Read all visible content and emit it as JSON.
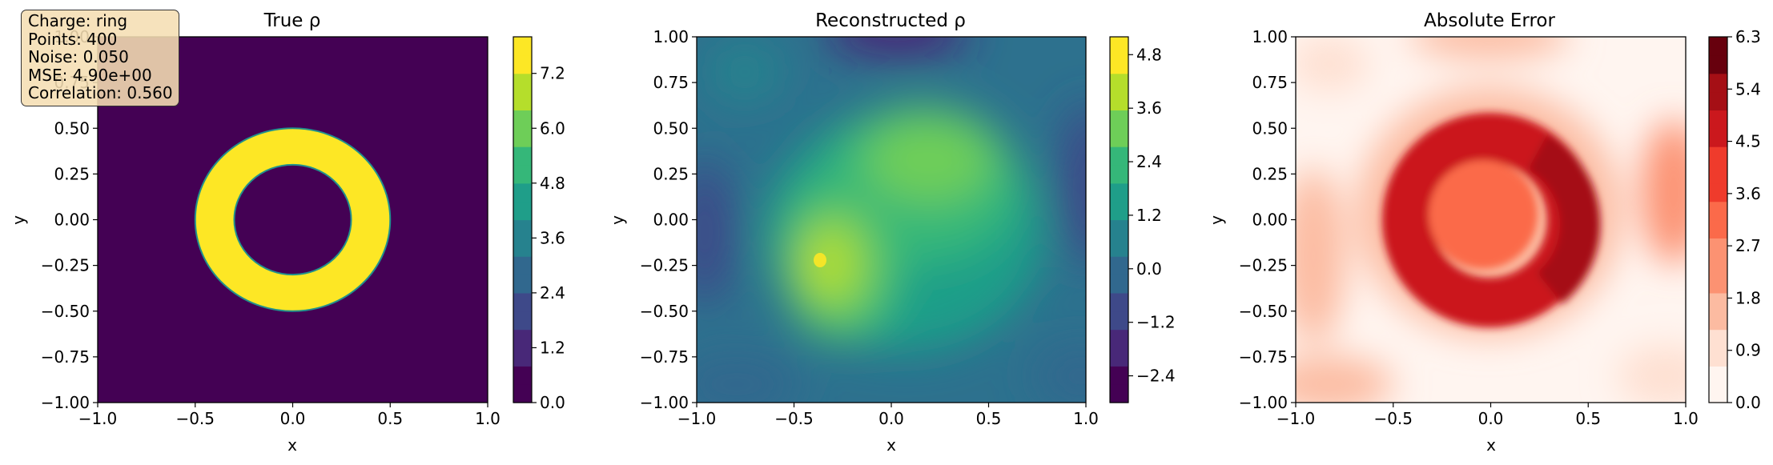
{
  "info_box": {
    "charge": "Charge: ring",
    "points": "Points: 400",
    "noise": "Noise: 0.050",
    "mse": "MSE: 4.90e+00",
    "correlation": "Correlation: 0.560"
  },
  "colors": {
    "viridis": [
      "#440154",
      "#482878",
      "#3e4989",
      "#31688e",
      "#26828e",
      "#1f9e89",
      "#35b779",
      "#6ece58",
      "#b5de2b",
      "#fde725"
    ],
    "reds": [
      "#fff5f0",
      "#fee0d2",
      "#fcbba1",
      "#fc9272",
      "#fb6a4a",
      "#ef3b2c",
      "#cb181d",
      "#a50f15",
      "#67000d"
    ]
  },
  "chart_data": [
    {
      "type": "heatmap",
      "title": "True ρ",
      "xlabel": "x",
      "ylabel": "y",
      "xlim": [
        -1.0,
        1.0
      ],
      "ylim": [
        -1.0,
        1.0
      ],
      "x_ticks": [
        "−1.0",
        "−0.5",
        "0.0",
        "0.5",
        "1.0"
      ],
      "y_ticks": [
        "−1.00",
        "−0.75",
        "−0.50",
        "−0.25",
        "0.00",
        "0.25",
        "0.50",
        "0.75",
        "1.00"
      ],
      "colormap": "viridis",
      "colorbar_range": [
        0.0,
        8.0
      ],
      "colorbar_ticks": [
        "0.0",
        "1.2",
        "2.4",
        "3.6",
        "4.8",
        "6.0",
        "7.2"
      ],
      "ring": {
        "center": [
          0.0,
          0.0
        ],
        "inner_radius": 0.3,
        "outer_radius": 0.5,
        "value": 8.0,
        "background": 0.0
      }
    },
    {
      "type": "heatmap",
      "title": "Reconstructed ρ",
      "xlabel": "x",
      "ylabel": "y",
      "xlim": [
        -1.0,
        1.0
      ],
      "ylim": [
        -1.0,
        1.0
      ],
      "x_ticks": [
        "−1.0",
        "−0.5",
        "0.0",
        "0.5",
        "1.0"
      ],
      "y_ticks": [
        "−1.00",
        "−0.75",
        "−0.50",
        "−0.25",
        "0.00",
        "0.25",
        "0.50",
        "0.75",
        "1.00"
      ],
      "colormap": "viridis",
      "colorbar_range": [
        -3.0,
        5.2
      ],
      "colorbar_ticks": [
        "−2.4",
        "−1.2",
        "0.0",
        "1.2",
        "2.4",
        "3.6",
        "4.8"
      ],
      "peak": {
        "x": -0.38,
        "y": -0.22,
        "value": 5.1
      },
      "background_level": 0.0
    },
    {
      "type": "heatmap",
      "title": "Absolute Error",
      "xlabel": "x",
      "ylabel": "y",
      "xlim": [
        -1.0,
        1.0
      ],
      "ylim": [
        -1.0,
        1.0
      ],
      "x_ticks": [
        "−1.0",
        "−0.5",
        "0.0",
        "0.5",
        "1.0"
      ],
      "y_ticks": [
        "−1.00",
        "−0.75",
        "−0.50",
        "−0.25",
        "0.00",
        "0.25",
        "0.50",
        "0.75",
        "1.00"
      ],
      "colormap": "Reds",
      "colorbar_range": [
        0.0,
        6.3
      ],
      "colorbar_ticks": [
        "0.0",
        "0.9",
        "1.8",
        "2.7",
        "3.6",
        "4.5",
        "5.4",
        "6.3"
      ],
      "max_error": 6.3
    }
  ]
}
